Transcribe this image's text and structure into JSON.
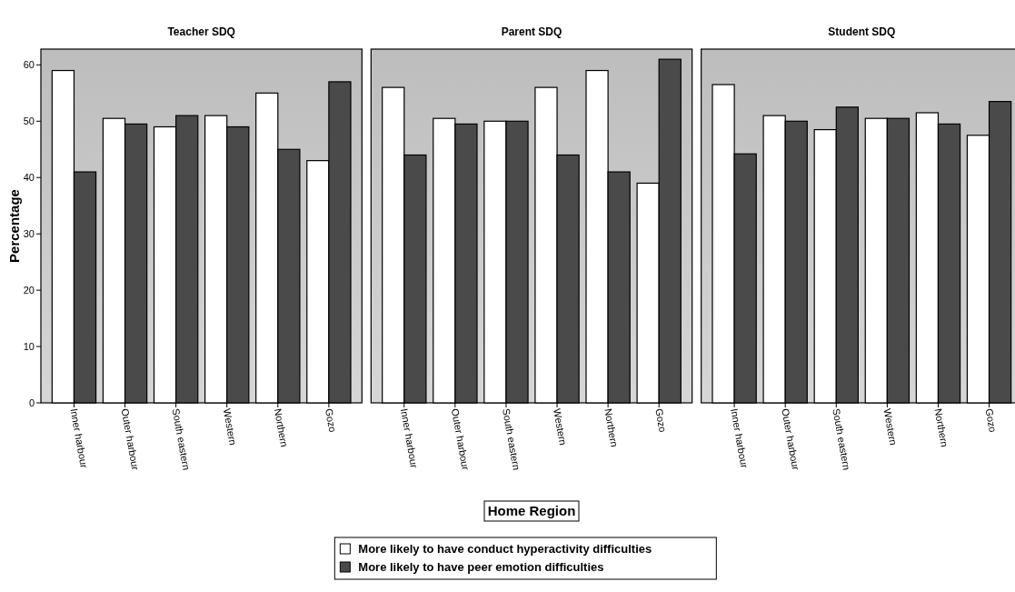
{
  "chart_data": [
    {
      "type": "bar",
      "title": "Teacher SDQ",
      "ylabel": "Percentage",
      "categories": [
        "Inner harbour",
        "Outer harbour",
        "South eastern",
        "Western",
        "Northern",
        "Gozo"
      ],
      "ylim": [
        0,
        62.8
      ],
      "yticks": [
        0,
        10,
        20,
        30,
        40,
        50,
        60
      ],
      "series": [
        {
          "color": "#ffffff",
          "values": [
            59,
            50.5,
            49,
            51,
            55,
            43
          ]
        },
        {
          "color": "#4a4a4a",
          "values": [
            41,
            49.5,
            51,
            49,
            45,
            57
          ]
        }
      ]
    },
    {
      "type": "bar",
      "title": "Parent SDQ",
      "xlabel": "Home Region",
      "categories": [
        "Inner harbour",
        "Outer harbour",
        "South eastern",
        "Western",
        "Northern",
        "Gozo"
      ],
      "ylim": [
        0,
        62.8
      ],
      "yticks": [
        0,
        10,
        20,
        30,
        40,
        50,
        60
      ],
      "tick_labels": "x",
      "legend": "bottom",
      "series": [
        {
          "name": "More likely to have conduct hyperactivity difficulties",
          "color": "#ffffff",
          "values": [
            56,
            50.5,
            50,
            56,
            59,
            39
          ]
        },
        {
          "name": "More likely to have peer emotion difficulties",
          "color": "#4a4a4a",
          "values": [
            44,
            49.5,
            50,
            44,
            41,
            61
          ]
        }
      ]
    },
    {
      "type": "bar",
      "title": "Student SDQ",
      "categories": [
        "Inner harbour",
        "Outer harbour",
        "South eastern",
        "Western",
        "Northern",
        "Gozo"
      ],
      "ylim": [
        0,
        62.8
      ],
      "yticks": [
        0,
        10,
        20,
        30,
        40,
        50,
        60
      ],
      "tick_labels": "x",
      "series": [
        {
          "color": "#ffffff",
          "values": [
            56.5,
            51,
            48.5,
            50.5,
            51.5,
            47.5
          ]
        },
        {
          "color": "#4a4a4a",
          "values": [
            44.2,
            50,
            52.5,
            50.5,
            49.5,
            53.5
          ]
        }
      ]
    }
  ]
}
